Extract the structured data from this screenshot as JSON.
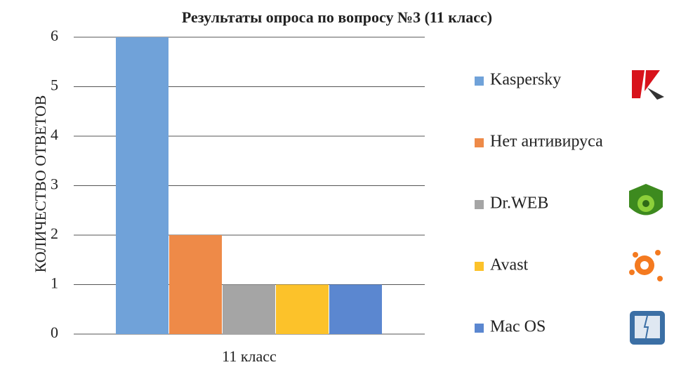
{
  "chart_data": {
    "type": "bar",
    "title": "Результаты опроса по вопросу №3 (11 класс)",
    "y_label": "КОЛИЧЕСТВО ОТВЕТОВ",
    "categories": [
      "11 класс"
    ],
    "series": [
      {
        "name": "Kaspersky",
        "color": "#70a2d9",
        "values": [
          6
        ]
      },
      {
        "name": "Нет антивируса",
        "color": "#ee8a48",
        "values": [
          2
        ]
      },
      {
        "name": "Dr.WEB",
        "color": "#a5a5a5",
        "values": [
          1
        ]
      },
      {
        "name": "Avast",
        "color": "#fcc22a",
        "values": [
          1
        ]
      },
      {
        "name": "Mac OS",
        "color": "#5b87d0",
        "values": [
          1
        ]
      }
    ],
    "ylim": [
      0,
      6
    ],
    "yticks": [
      0,
      1,
      2,
      3,
      4,
      5,
      6
    ],
    "grid": true,
    "legend": "right"
  }
}
